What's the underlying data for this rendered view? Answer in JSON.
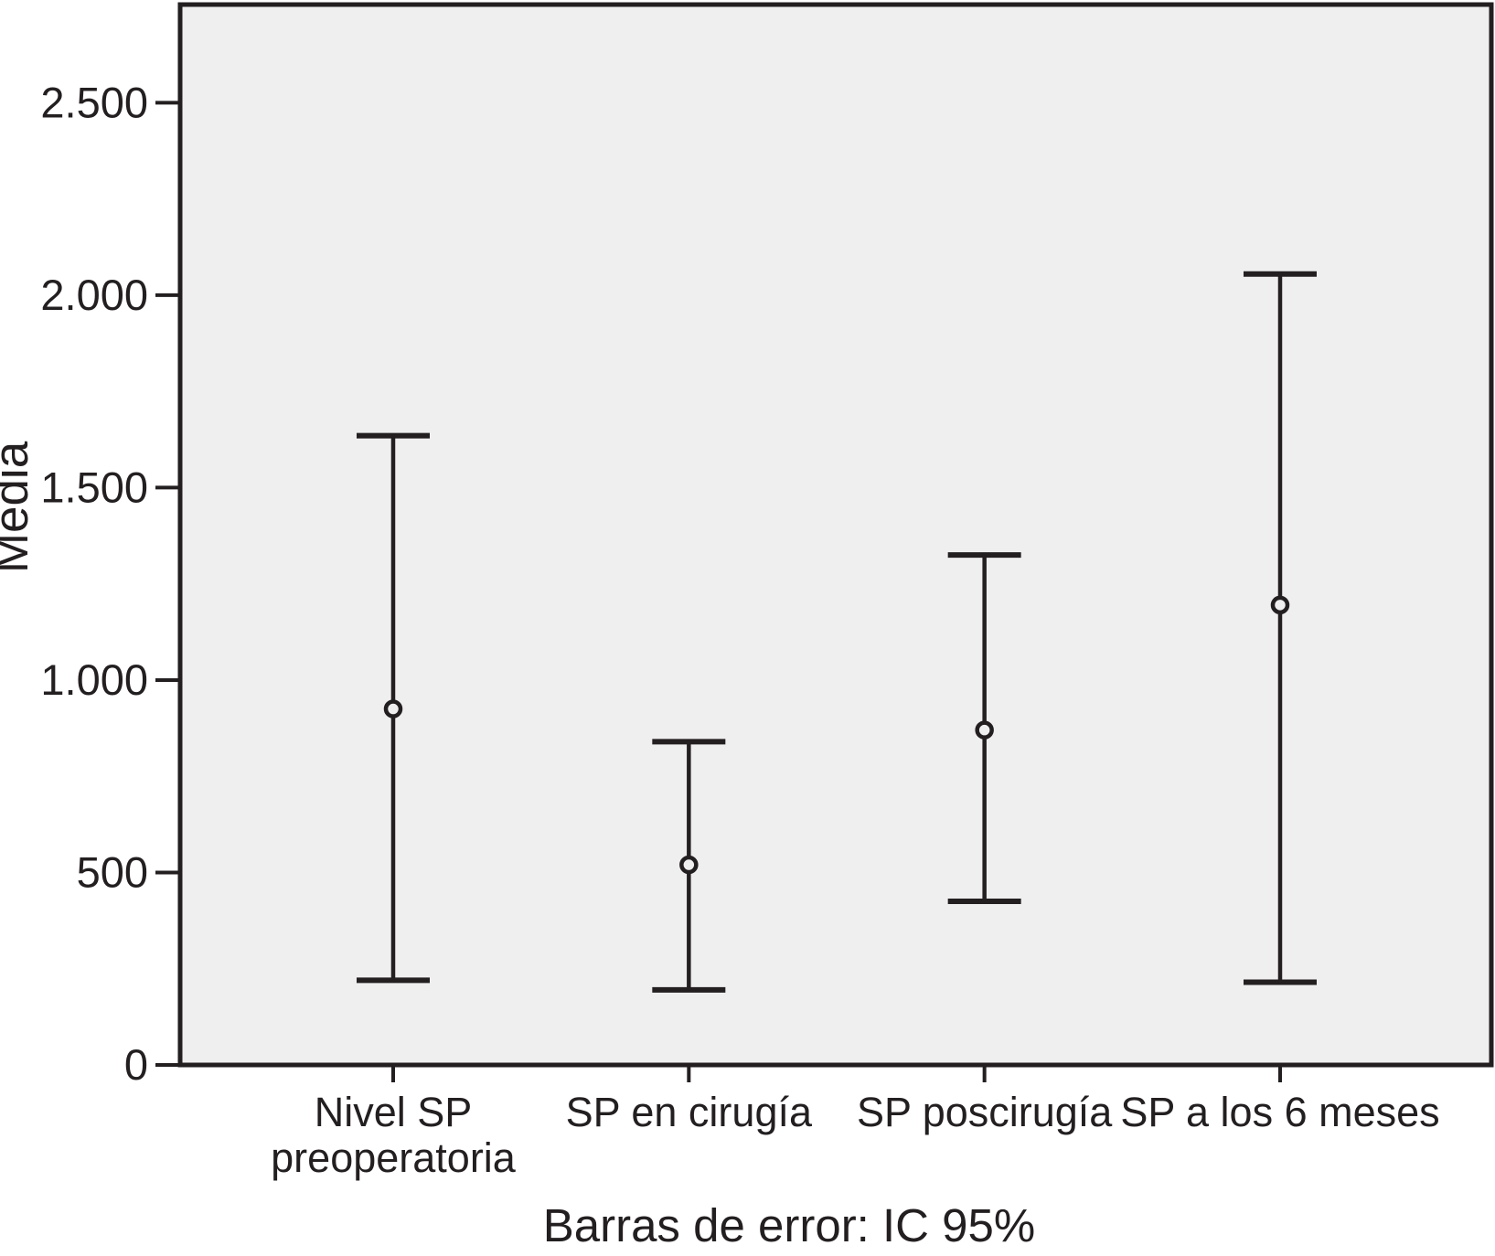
{
  "figure": {
    "ink_color": "#231f20",
    "plot_background": "#f0eff0",
    "page_background": "#ffffff"
  },
  "chart_data": {
    "type": "errorbar",
    "title": "",
    "caption": "Barras de error: IC 95%",
    "ylabel": "Media",
    "xlabel": "",
    "ylim": [
      0,
      2755
    ],
    "grid": false,
    "legend": "none",
    "yticks": [
      {
        "value": 0,
        "label": "0"
      },
      {
        "value": 500,
        "label": "500"
      },
      {
        "value": 1000,
        "label": "1.000"
      },
      {
        "value": 1500,
        "label": "1.500"
      },
      {
        "value": 2000,
        "label": "2.000"
      },
      {
        "value": 2500,
        "label": "2.500"
      }
    ],
    "series": [
      {
        "name": "Media (IC 95%)",
        "marker": "open-circle",
        "points": [
          {
            "category": "Nivel SP preoperatoria",
            "label_lines": [
              "Nivel SP",
              "preoperatoria"
            ],
            "mean": 925,
            "ci_low": 220,
            "ci_high": 1635
          },
          {
            "category": "SP en cirugía",
            "label_lines": [
              "SP en cirugía"
            ],
            "mean": 520,
            "ci_low": 195,
            "ci_high": 840
          },
          {
            "category": "SP poscirugía",
            "label_lines": [
              "SP poscirugía"
            ],
            "mean": 870,
            "ci_low": 425,
            "ci_high": 1325
          },
          {
            "category": "SP a los 6 meses",
            "label_lines": [
              "SP a los 6 meses"
            ],
            "mean": 1195,
            "ci_low": 215,
            "ci_high": 2055
          }
        ]
      }
    ]
  }
}
